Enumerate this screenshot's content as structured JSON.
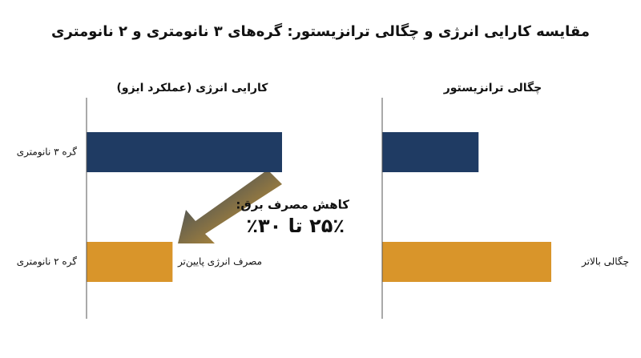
{
  "title": "مقایسه کارایی انرژی و چگالی ترانزیستور: گره‌های ۳ نانومتری و ۲ نانومتری",
  "chart_data": [
    {
      "type": "bar",
      "orientation": "horizontal",
      "title": "کارایی انرژی (عملکرد ایزو)",
      "categories": [
        "گره ۳ نانومتری",
        "گره ۲ نانومتری"
      ],
      "series": [
        {
          "colors": [
            "#1f3b63",
            "#d9952a"
          ],
          "values": [
            100,
            44
          ]
        }
      ],
      "xlim": [
        0,
        100
      ],
      "annotations": [
        "مصرف انرژی پایین‌تر",
        "کاهش مصرف برق:",
        "۲۵٪ تا ۳۰٪"
      ]
    },
    {
      "type": "bar",
      "orientation": "horizontal",
      "title": "چگالی ترانزیستور",
      "categories": [
        null,
        null
      ],
      "series": [
        {
          "colors": [
            "#1f3b63",
            "#d9952a"
          ],
          "values": [
            57,
            100
          ]
        }
      ],
      "xlim": [
        0,
        100
      ],
      "annotations": [
        "چگالی بالاتر"
      ]
    }
  ]
}
